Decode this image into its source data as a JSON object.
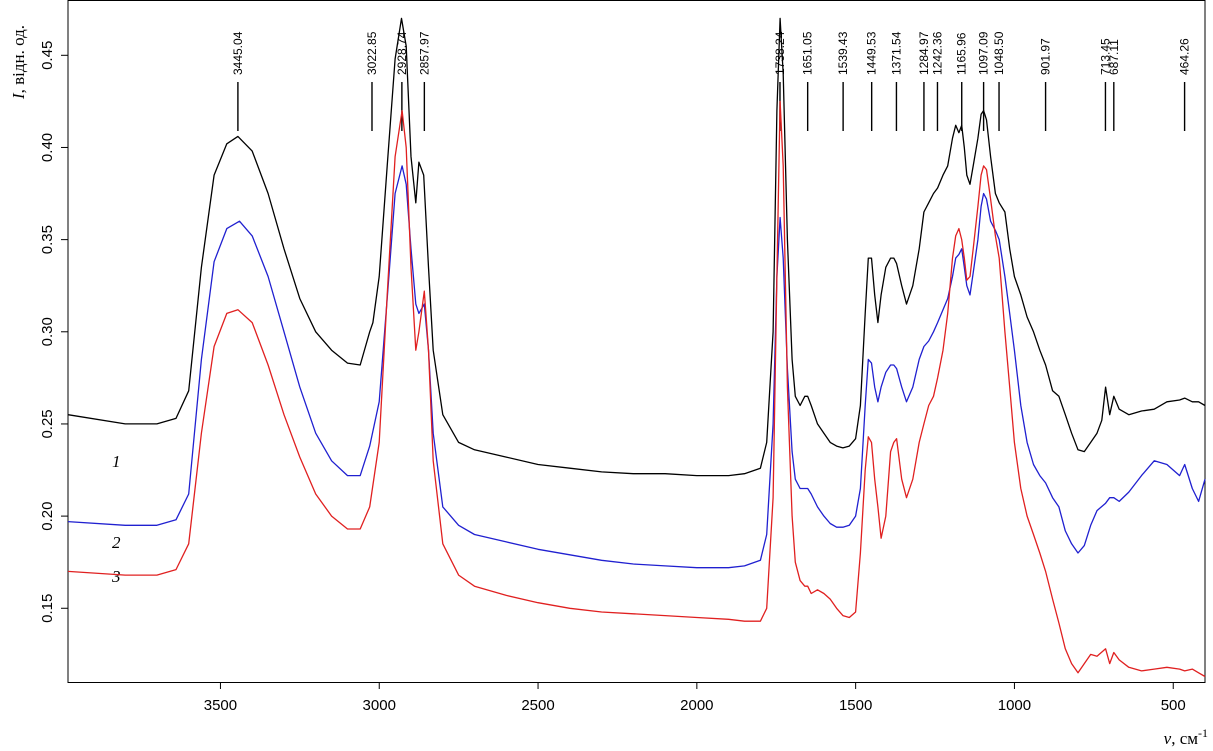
{
  "chart_data": {
    "type": "line",
    "title": "",
    "xlabel": {
      "symbol": "ν",
      "unit": ", см",
      "unit_sup": "-1"
    },
    "ylabel": {
      "symbol": "I",
      "unit": ", відн. од."
    },
    "xlim": [
      3980,
      400
    ],
    "ylim": [
      0.11,
      0.48
    ],
    "x_axis_reversed": true,
    "xticks": [
      3500,
      3000,
      2500,
      2000,
      1500,
      1000,
      500
    ],
    "xtick_labels": [
      "3500",
      "3000",
      "2500",
      "2000",
      "1500",
      "1000",
      "500"
    ],
    "yticks": [
      0.15,
      0.2,
      0.25,
      0.3,
      0.35,
      0.4,
      0.45
    ],
    "ytick_labels": [
      "0.15",
      "0.20",
      "0.25",
      "0.30",
      "0.35",
      "0.40",
      "0.45"
    ],
    "grid": false,
    "legend": "none",
    "peak_annotations": [
      {
        "value": 3445.04,
        "label": "3445.04"
      },
      {
        "value": 3022.85,
        "label": "3022.85"
      },
      {
        "value": 2928.74,
        "label": "2928.74"
      },
      {
        "value": 2857.97,
        "label": "2857.97"
      },
      {
        "value": 1738.24,
        "label": "1738.24"
      },
      {
        "value": 1651.05,
        "label": "1651.05"
      },
      {
        "value": 1539.43,
        "label": "1539.43"
      },
      {
        "value": 1449.53,
        "label": "1449.53"
      },
      {
        "value": 1371.54,
        "label": "1371.54"
      },
      {
        "value": 1284.97,
        "label": "1284.97"
      },
      {
        "value": 1242.36,
        "label": "1242.36"
      },
      {
        "value": 1165.96,
        "label": "1165.96"
      },
      {
        "value": 1097.09,
        "label": "1097.09"
      },
      {
        "value": 1048.5,
        "label": "1048.50"
      },
      {
        "value": 901.97,
        "label": "901.97"
      },
      {
        "value": 713.45,
        "label": "713.45"
      },
      {
        "value": 687.11,
        "label": "687.11"
      },
      {
        "value": 464.26,
        "label": "464.26"
      }
    ],
    "series": [
      {
        "name": "1",
        "color": "#000000",
        "x": [
          3980,
          3800,
          3700,
          3640,
          3600,
          3560,
          3520,
          3480,
          3445,
          3400,
          3350,
          3300,
          3250,
          3200,
          3150,
          3100,
          3060,
          3030,
          3020,
          3000,
          2975,
          2950,
          2930,
          2915,
          2900,
          2885,
          2875,
          2860,
          2845,
          2830,
          2800,
          2750,
          2700,
          2600,
          2500,
          2400,
          2300,
          2200,
          2100,
          2000,
          1900,
          1850,
          1800,
          1780,
          1760,
          1748,
          1738,
          1728,
          1715,
          1700,
          1690,
          1675,
          1660,
          1651,
          1640,
          1620,
          1600,
          1580,
          1560,
          1540,
          1520,
          1500,
          1485,
          1470,
          1460,
          1450,
          1440,
          1430,
          1420,
          1405,
          1390,
          1380,
          1371,
          1355,
          1340,
          1320,
          1300,
          1285,
          1270,
          1255,
          1242,
          1225,
          1210,
          1195,
          1185,
          1175,
          1166,
          1158,
          1150,
          1140,
          1130,
          1115,
          1105,
          1097,
          1088,
          1075,
          1060,
          1048,
          1030,
          1015,
          1000,
          980,
          960,
          940,
          920,
          902,
          880,
          860,
          840,
          820,
          800,
          780,
          760,
          740,
          725,
          713,
          700,
          687,
          670,
          640,
          600,
          560,
          520,
          480,
          464,
          440,
          420,
          400
        ],
        "values": [
          0.255,
          0.25,
          0.25,
          0.253,
          0.268,
          0.335,
          0.385,
          0.402,
          0.406,
          0.398,
          0.375,
          0.345,
          0.318,
          0.3,
          0.29,
          0.283,
          0.282,
          0.3,
          0.305,
          0.33,
          0.39,
          0.448,
          0.47,
          0.455,
          0.395,
          0.37,
          0.392,
          0.385,
          0.335,
          0.29,
          0.255,
          0.24,
          0.236,
          0.232,
          0.228,
          0.226,
          0.224,
          0.223,
          0.223,
          0.222,
          0.222,
          0.223,
          0.226,
          0.24,
          0.3,
          0.42,
          0.47,
          0.44,
          0.35,
          0.285,
          0.265,
          0.26,
          0.265,
          0.265,
          0.26,
          0.25,
          0.245,
          0.24,
          0.238,
          0.237,
          0.238,
          0.242,
          0.26,
          0.31,
          0.34,
          0.34,
          0.32,
          0.305,
          0.32,
          0.335,
          0.34,
          0.34,
          0.337,
          0.325,
          0.315,
          0.325,
          0.345,
          0.365,
          0.37,
          0.375,
          0.378,
          0.385,
          0.39,
          0.405,
          0.412,
          0.408,
          0.412,
          0.4,
          0.385,
          0.38,
          0.39,
          0.405,
          0.418,
          0.42,
          0.415,
          0.395,
          0.375,
          0.37,
          0.365,
          0.345,
          0.33,
          0.32,
          0.308,
          0.3,
          0.29,
          0.282,
          0.268,
          0.265,
          0.255,
          0.245,
          0.236,
          0.235,
          0.24,
          0.245,
          0.252,
          0.27,
          0.255,
          0.265,
          0.258,
          0.255,
          0.257,
          0.258,
          0.262,
          0.263,
          0.264,
          0.262,
          0.262,
          0.26
        ]
      },
      {
        "name": "2",
        "color": "#2020d0",
        "x": [
          3980,
          3800,
          3700,
          3640,
          3600,
          3560,
          3520,
          3480,
          3440,
          3400,
          3350,
          3300,
          3250,
          3200,
          3150,
          3100,
          3060,
          3030,
          3000,
          2975,
          2950,
          2928,
          2915,
          2900,
          2885,
          2875,
          2858,
          2845,
          2830,
          2800,
          2750,
          2700,
          2600,
          2500,
          2400,
          2300,
          2200,
          2100,
          2000,
          1900,
          1850,
          1800,
          1780,
          1760,
          1748,
          1738,
          1728,
          1715,
          1700,
          1690,
          1675,
          1660,
          1651,
          1640,
          1620,
          1600,
          1580,
          1560,
          1540,
          1520,
          1500,
          1485,
          1470,
          1460,
          1450,
          1440,
          1430,
          1420,
          1405,
          1390,
          1380,
          1371,
          1355,
          1340,
          1320,
          1300,
          1285,
          1270,
          1255,
          1242,
          1225,
          1210,
          1195,
          1185,
          1175,
          1166,
          1158,
          1150,
          1140,
          1130,
          1115,
          1105,
          1097,
          1088,
          1075,
          1060,
          1048,
          1030,
          1015,
          1000,
          980,
          960,
          940,
          920,
          902,
          880,
          860,
          840,
          820,
          800,
          780,
          760,
          740,
          713,
          700,
          687,
          670,
          640,
          600,
          560,
          520,
          480,
          464,
          440,
          420,
          400
        ],
        "values": [
          0.197,
          0.195,
          0.195,
          0.198,
          0.212,
          0.285,
          0.338,
          0.356,
          0.36,
          0.352,
          0.33,
          0.3,
          0.27,
          0.245,
          0.23,
          0.222,
          0.222,
          0.238,
          0.262,
          0.318,
          0.375,
          0.39,
          0.38,
          0.345,
          0.315,
          0.31,
          0.315,
          0.29,
          0.245,
          0.205,
          0.195,
          0.19,
          0.186,
          0.182,
          0.179,
          0.176,
          0.174,
          0.173,
          0.172,
          0.172,
          0.173,
          0.176,
          0.19,
          0.25,
          0.33,
          0.362,
          0.34,
          0.28,
          0.235,
          0.22,
          0.215,
          0.215,
          0.215,
          0.212,
          0.205,
          0.2,
          0.196,
          0.194,
          0.194,
          0.195,
          0.2,
          0.215,
          0.26,
          0.285,
          0.283,
          0.27,
          0.262,
          0.27,
          0.278,
          0.282,
          0.282,
          0.28,
          0.27,
          0.262,
          0.27,
          0.285,
          0.292,
          0.295,
          0.3,
          0.305,
          0.312,
          0.318,
          0.33,
          0.34,
          0.342,
          0.345,
          0.335,
          0.325,
          0.32,
          0.332,
          0.35,
          0.368,
          0.375,
          0.372,
          0.36,
          0.355,
          0.35,
          0.33,
          0.31,
          0.29,
          0.26,
          0.24,
          0.228,
          0.222,
          0.218,
          0.21,
          0.205,
          0.192,
          0.185,
          0.18,
          0.184,
          0.195,
          0.203,
          0.207,
          0.21,
          0.21,
          0.208,
          0.213,
          0.222,
          0.23,
          0.228,
          0.222,
          0.228,
          0.215,
          0.208,
          0.22
        ]
      },
      {
        "name": "3",
        "color": "#e02020",
        "x": [
          3980,
          3800,
          3700,
          3640,
          3600,
          3560,
          3520,
          3480,
          3445,
          3400,
          3350,
          3300,
          3250,
          3200,
          3150,
          3100,
          3060,
          3030,
          3000,
          2975,
          2950,
          2928,
          2915,
          2900,
          2885,
          2875,
          2858,
          2845,
          2830,
          2800,
          2750,
          2700,
          2600,
          2500,
          2400,
          2300,
          2200,
          2100,
          2000,
          1900,
          1850,
          1800,
          1780,
          1760,
          1748,
          1738,
          1728,
          1715,
          1700,
          1690,
          1675,
          1660,
          1651,
          1640,
          1620,
          1600,
          1580,
          1560,
          1540,
          1520,
          1500,
          1485,
          1470,
          1460,
          1450,
          1440,
          1430,
          1420,
          1405,
          1390,
          1380,
          1371,
          1355,
          1340,
          1320,
          1300,
          1285,
          1270,
          1255,
          1242,
          1225,
          1210,
          1195,
          1185,
          1175,
          1166,
          1158,
          1150,
          1140,
          1130,
          1115,
          1105,
          1097,
          1088,
          1075,
          1060,
          1048,
          1030,
          1015,
          1000,
          980,
          960,
          940,
          920,
          902,
          880,
          860,
          840,
          820,
          800,
          780,
          760,
          740,
          713,
          700,
          687,
          670,
          640,
          600,
          560,
          520,
          480,
          464,
          440,
          420,
          400
        ],
        "values": [
          0.17,
          0.168,
          0.168,
          0.171,
          0.185,
          0.245,
          0.292,
          0.31,
          0.312,
          0.305,
          0.282,
          0.255,
          0.232,
          0.212,
          0.2,
          0.193,
          0.193,
          0.205,
          0.24,
          0.32,
          0.395,
          0.42,
          0.4,
          0.335,
          0.29,
          0.3,
          0.322,
          0.29,
          0.23,
          0.185,
          0.168,
          0.162,
          0.157,
          0.153,
          0.15,
          0.148,
          0.147,
          0.146,
          0.145,
          0.144,
          0.143,
          0.143,
          0.15,
          0.21,
          0.33,
          0.425,
          0.39,
          0.27,
          0.2,
          0.175,
          0.165,
          0.162,
          0.162,
          0.158,
          0.16,
          0.158,
          0.155,
          0.15,
          0.146,
          0.145,
          0.148,
          0.18,
          0.225,
          0.243,
          0.24,
          0.22,
          0.205,
          0.188,
          0.2,
          0.235,
          0.24,
          0.242,
          0.22,
          0.21,
          0.22,
          0.24,
          0.25,
          0.26,
          0.265,
          0.275,
          0.29,
          0.31,
          0.34,
          0.352,
          0.356,
          0.35,
          0.34,
          0.328,
          0.33,
          0.345,
          0.368,
          0.385,
          0.39,
          0.388,
          0.372,
          0.352,
          0.34,
          0.3,
          0.27,
          0.24,
          0.215,
          0.2,
          0.19,
          0.18,
          0.17,
          0.155,
          0.142,
          0.128,
          0.12,
          0.115,
          0.12,
          0.125,
          0.124,
          0.128,
          0.12,
          0.126,
          0.122,
          0.118,
          0.116,
          0.117,
          0.118,
          0.117,
          0.116,
          0.117,
          0.115,
          0.113
        ]
      }
    ]
  }
}
